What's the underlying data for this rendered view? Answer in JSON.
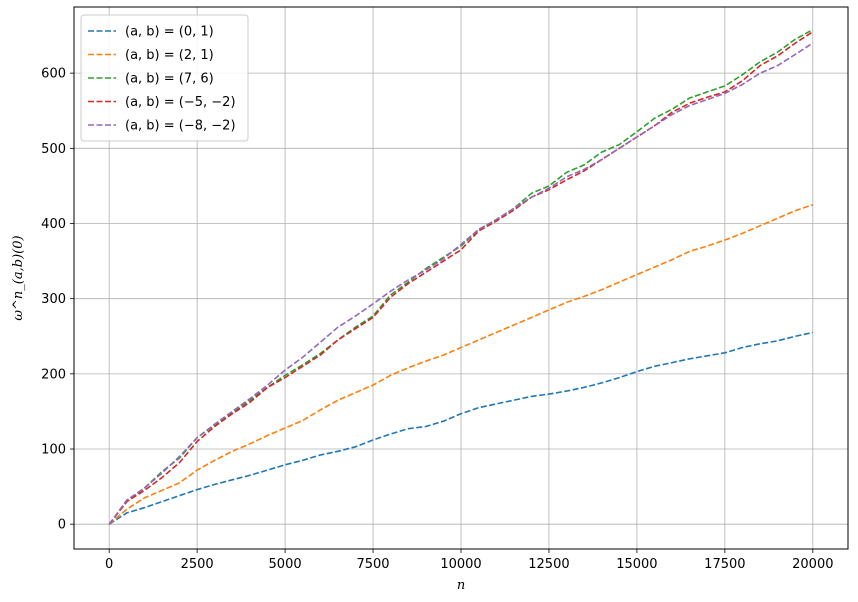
{
  "chart_data": {
    "type": "line",
    "title": "",
    "xlabel": "n",
    "ylabel": "ω^n_(a,b)(0)",
    "xlim": [
      -1000,
      21000
    ],
    "ylim": [
      -33,
      688
    ],
    "xticks": [
      0,
      2500,
      5000,
      7500,
      10000,
      12500,
      15000,
      17500,
      20000
    ],
    "xtick_labels": [
      "0",
      "2500",
      "5000",
      "7500",
      "10000",
      "12500",
      "15000",
      "17500",
      "20000"
    ],
    "yticks": [
      0,
      100,
      200,
      300,
      400,
      500,
      600
    ],
    "ytick_labels": [
      "0",
      "100",
      "200",
      "300",
      "400",
      "500",
      "600"
    ],
    "grid": true,
    "legend_position": "top-left",
    "line_style": "dashed",
    "series": [
      {
        "name": "(a, b) = (0, 1)",
        "color": "#1f77b4",
        "x": [
          0,
          500,
          1000,
          1500,
          2000,
          2500,
          3000,
          3500,
          4000,
          4500,
          5000,
          5500,
          6000,
          6500,
          7000,
          7500,
          8000,
          8500,
          9000,
          9500,
          10000,
          10500,
          11000,
          11500,
          12000,
          12500,
          13000,
          13500,
          14000,
          14500,
          15000,
          15500,
          16000,
          16500,
          17000,
          17500,
          18000,
          18500,
          19000,
          19500,
          20000
        ],
        "values": [
          0,
          15,
          22,
          30,
          38,
          46,
          53,
          59,
          65,
          72,
          79,
          85,
          92,
          97,
          103,
          112,
          120,
          127,
          130,
          137,
          147,
          155,
          160,
          165,
          170,
          173,
          177,
          182,
          188,
          195,
          203,
          210,
          215,
          220,
          224,
          228,
          235,
          240,
          244,
          250,
          255
        ]
      },
      {
        "name": "(a, b) = (2, 1)",
        "color": "#ff7f0e",
        "x": [
          0,
          500,
          1000,
          1500,
          2000,
          2500,
          3000,
          3500,
          4000,
          4500,
          5000,
          5500,
          6000,
          6500,
          7000,
          7500,
          8000,
          8500,
          9000,
          9500,
          10000,
          10500,
          11000,
          11500,
          12000,
          12500,
          13000,
          13500,
          14000,
          14500,
          15000,
          15500,
          16000,
          16500,
          17000,
          17500,
          18000,
          18500,
          19000,
          19500,
          20000
        ],
        "values": [
          0,
          20,
          35,
          45,
          55,
          72,
          85,
          97,
          107,
          118,
          128,
          138,
          152,
          165,
          175,
          185,
          198,
          208,
          217,
          225,
          235,
          245,
          255,
          265,
          275,
          285,
          295,
          303,
          312,
          322,
          332,
          342,
          352,
          363,
          370,
          378,
          387,
          397,
          407,
          417,
          425
        ]
      },
      {
        "name": "(a, b) = (7, 6)",
        "color": "#2ca02c",
        "x": [
          0,
          500,
          1000,
          1500,
          2000,
          2500,
          3000,
          3500,
          4000,
          4500,
          5000,
          5500,
          6000,
          6500,
          7000,
          7500,
          8000,
          8500,
          9000,
          9500,
          10000,
          10500,
          11000,
          11500,
          12000,
          12500,
          13000,
          13500,
          14000,
          14500,
          15000,
          15500,
          16000,
          16500,
          17000,
          17500,
          18000,
          18500,
          19000,
          19500,
          20000
        ],
        "values": [
          0,
          30,
          48,
          70,
          88,
          115,
          132,
          148,
          165,
          182,
          198,
          212,
          227,
          245,
          262,
          277,
          305,
          322,
          340,
          355,
          370,
          392,
          405,
          420,
          440,
          450,
          468,
          478,
          495,
          505,
          522,
          540,
          552,
          567,
          575,
          583,
          598,
          615,
          628,
          645,
          658
        ]
      },
      {
        "name": "(a, b) = (−5, −2)",
        "color": "#d62728",
        "x": [
          0,
          500,
          1000,
          1500,
          2000,
          2500,
          3000,
          3500,
          4000,
          4500,
          5000,
          5500,
          6000,
          6500,
          7000,
          7500,
          8000,
          8500,
          9000,
          9500,
          10000,
          10500,
          11000,
          11500,
          12000,
          12500,
          13000,
          13500,
          14000,
          14500,
          15000,
          15500,
          16000,
          16500,
          17000,
          17500,
          18000,
          18500,
          19000,
          19500,
          20000
        ],
        "values": [
          0,
          30,
          45,
          62,
          82,
          110,
          130,
          147,
          162,
          182,
          195,
          210,
          225,
          245,
          260,
          275,
          302,
          320,
          335,
          350,
          365,
          390,
          403,
          418,
          435,
          445,
          458,
          470,
          485,
          500,
          515,
          530,
          548,
          560,
          568,
          575,
          590,
          610,
          623,
          640,
          655
        ]
      },
      {
        "name": "(a, b) = (−8, −2)",
        "color": "#9467bd",
        "x": [
          0,
          500,
          1000,
          1500,
          2000,
          2500,
          3000,
          3500,
          4000,
          4500,
          5000,
          5500,
          6000,
          6500,
          7000,
          7500,
          8000,
          8500,
          9000,
          9500,
          10000,
          10500,
          11000,
          11500,
          12000,
          12500,
          13000,
          13500,
          14000,
          14500,
          15000,
          15500,
          16000,
          16500,
          17000,
          17500,
          18000,
          18500,
          19000,
          19500,
          20000
        ],
        "values": [
          0,
          32,
          48,
          68,
          90,
          115,
          133,
          150,
          167,
          185,
          205,
          222,
          242,
          262,
          277,
          293,
          310,
          325,
          338,
          353,
          372,
          392,
          405,
          420,
          435,
          447,
          462,
          472,
          485,
          500,
          515,
          530,
          545,
          557,
          565,
          573,
          585,
          600,
          610,
          625,
          640
        ]
      }
    ]
  }
}
